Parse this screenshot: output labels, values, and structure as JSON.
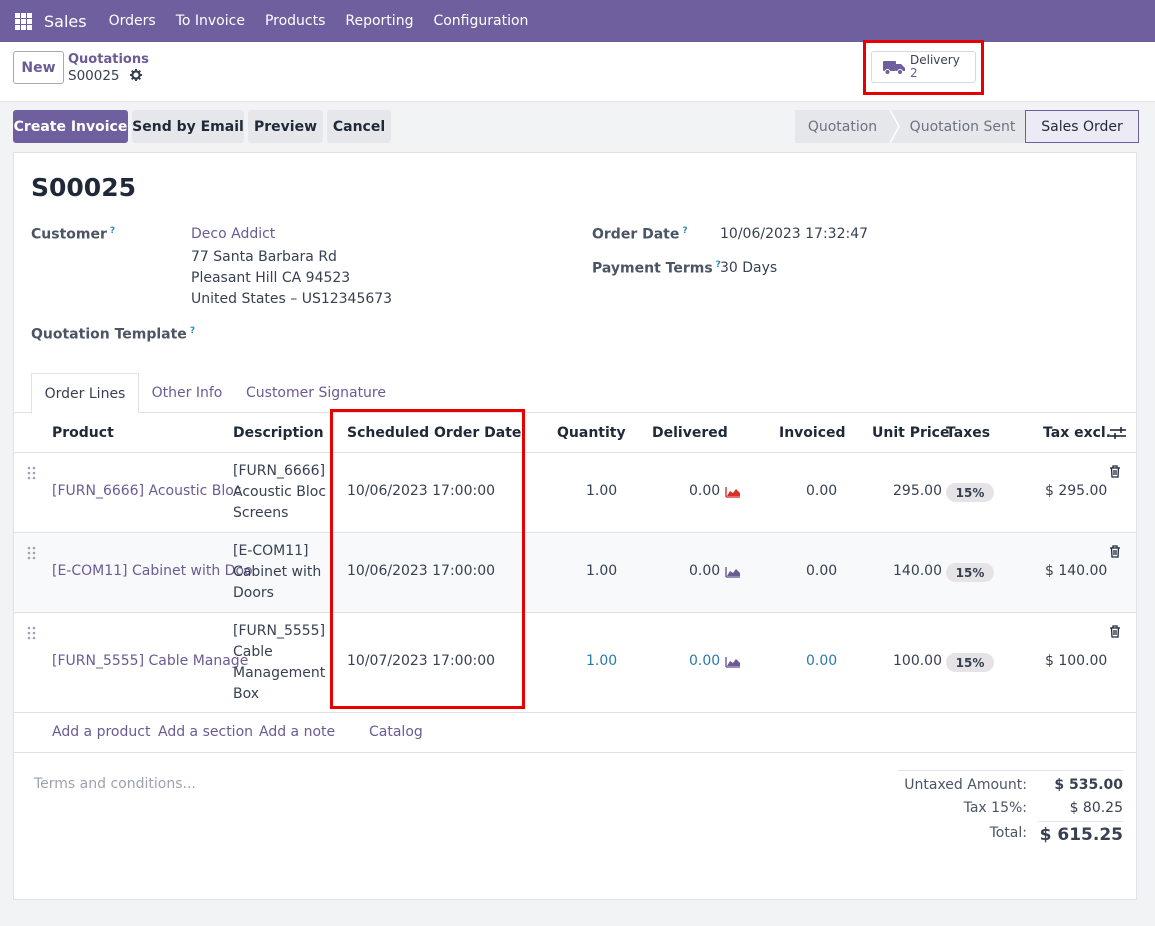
{
  "nav": {
    "app": "Sales",
    "menu": [
      "Orders",
      "To Invoice",
      "Products",
      "Reporting",
      "Configuration"
    ]
  },
  "control": {
    "new_label": "New",
    "breadcrumb_parent": "Quotations",
    "breadcrumb_current": "S00025",
    "smart_button": {
      "label": "Delivery",
      "count": "2",
      "icon": "truck-icon"
    }
  },
  "actions": [
    "Create Invoice",
    "Send by Email",
    "Preview",
    "Cancel"
  ],
  "status_stages": [
    "Quotation",
    "Quotation Sent",
    "Sales Order"
  ],
  "status_active": "Sales Order",
  "record": {
    "name": "S00025",
    "customer_label": "Customer",
    "customer_name": "Deco Addict",
    "address_1": "77 Santa Barbara Rd",
    "address_2": "Pleasant Hill CA 94523",
    "address_3": "United States – US12345673",
    "template_label": "Quotation Template",
    "order_date_label": "Order Date",
    "order_date": "10/06/2023 17:32:47",
    "payment_terms_label": "Payment Terms",
    "payment_terms": "30 Days",
    "help_mark": "?"
  },
  "tabs": [
    "Order Lines",
    "Other Info",
    "Customer Signature"
  ],
  "columns": [
    "Product",
    "Description",
    "Scheduled Order Date",
    "Quantity",
    "Delivered",
    "Invoiced",
    "Unit Price",
    "Taxes",
    "Tax excl."
  ],
  "lines": [
    {
      "product": "[FURN_6666] Acoustic Bloc",
      "desc_1": "[FURN_6666]",
      "desc_2": "Acoustic Bloc",
      "desc_3": "Screens",
      "date": "10/06/2023 17:00:00",
      "qty": "1.00",
      "delivered": "0.00",
      "invoiced": "0.00",
      "price": "295.00",
      "tax": "15%",
      "subtotal": "$ 295.00",
      "forecast_color": "#d9302b"
    },
    {
      "product": "[E-COM11] Cabinet with Doo",
      "desc_1": "[E-COM11]",
      "desc_2": "Cabinet with",
      "desc_3": "Doors",
      "date": "10/06/2023 17:00:00",
      "qty": "1.00",
      "delivered": "0.00",
      "invoiced": "0.00",
      "price": "140.00",
      "tax": "15%",
      "subtotal": "$ 140.00",
      "forecast_color": "#6b5b95"
    },
    {
      "product": "[FURN_5555] Cable Manage",
      "desc_1": "[FURN_5555]",
      "desc_2": "Cable",
      "desc_3": "Management",
      "desc_4": "Box",
      "date": "10/07/2023 17:00:00",
      "qty": "1.00",
      "delivered": "0.00",
      "invoiced": "0.00",
      "price": "100.00",
      "tax": "15%",
      "subtotal": "$ 100.00",
      "forecast_color": "#6b5b95"
    }
  ],
  "add_links": [
    "Add a product",
    "Add a section",
    "Add a note",
    "Catalog"
  ],
  "terms_placeholder": "Terms and conditions...",
  "totals": {
    "untaxed_label": "Untaxed Amount:",
    "untaxed": "$ 535.00",
    "tax_label": "Tax 15%:",
    "tax": "$ 80.25",
    "total_label": "Total:",
    "total": "$ 615.25"
  },
  "colors": {
    "brand": "#6f5f9e",
    "highlight": "#e60000"
  }
}
